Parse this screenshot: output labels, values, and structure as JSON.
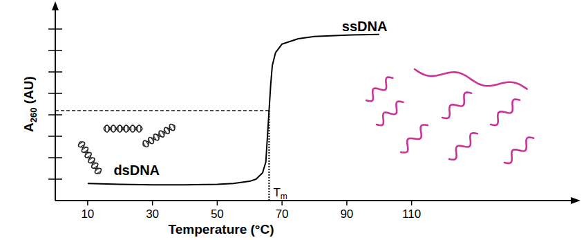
{
  "chart_data": {
    "type": "line",
    "x_label": "Temperature (°C)",
    "y_label": "A260 (AU)",
    "x": [
      10,
      20,
      30,
      40,
      50,
      55,
      60,
      62,
      64,
      65,
      65.5,
      66,
      66.5,
      67,
      68,
      70,
      75,
      80,
      90,
      100
    ],
    "values": [
      0.8,
      0.76,
      0.73,
      0.73,
      0.76,
      0.8,
      0.9,
      1.0,
      1.3,
      1.8,
      3.0,
      4.2,
      5.4,
      6.3,
      6.9,
      7.3,
      7.55,
      7.65,
      7.72,
      7.75
    ],
    "color": "#000000",
    "xlim": [
      0,
      160
    ],
    "xticks": [
      10,
      30,
      50,
      70,
      90,
      110
    ],
    "ylim": [
      0,
      9
    ],
    "yticks": [
      1,
      2,
      3,
      4,
      5,
      6,
      7,
      8
    ],
    "tick_labels": "x",
    "grid": false,
    "annotations": [
      {
        "text": "ssDNA",
        "x": 88.5,
        "y": 7.9
      },
      {
        "text": "dsDNA",
        "x": 18,
        "y": 1.2
      },
      {
        "text": "Tm",
        "x": 66,
        "y": 4.2,
        "line_style": "dashed"
      }
    ]
  }
}
